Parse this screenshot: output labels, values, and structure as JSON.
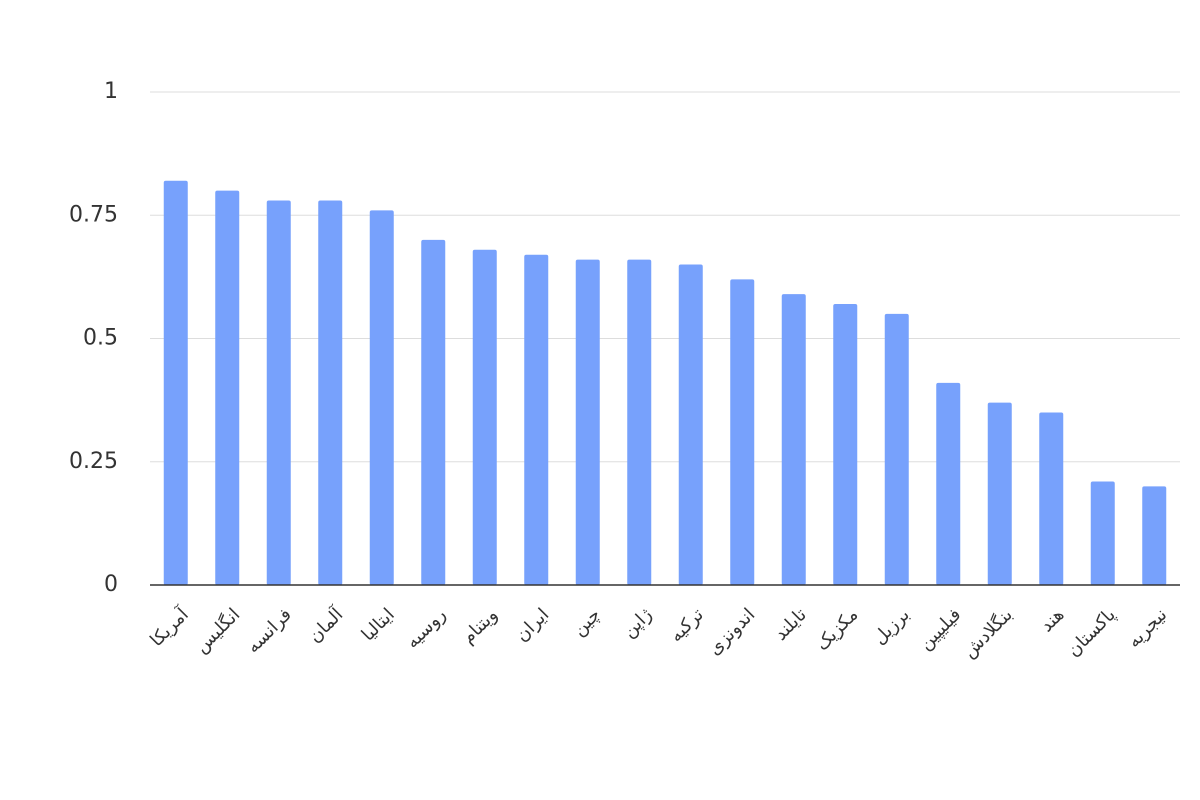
{
  "chart_data": {
    "type": "bar",
    "categories": [
      "آمریکا",
      "انگلیس",
      "فرانسه",
      "آلمان",
      "ایتالیا",
      "روسیه",
      "ویتنام",
      "ایران",
      "چین",
      "ژاپن",
      "ترکیه",
      "اندونزی",
      "تایلند",
      "مکزیک",
      "برزیل",
      "فیلیپین",
      "بنگلادش",
      "هند",
      "پاکستان",
      "نیجریه"
    ],
    "values": [
      0.82,
      0.8,
      0.78,
      0.78,
      0.76,
      0.7,
      0.68,
      0.67,
      0.66,
      0.66,
      0.65,
      0.62,
      0.59,
      0.57,
      0.55,
      0.41,
      0.37,
      0.35,
      0.21,
      0.2
    ],
    "color": "#77a1fc",
    "ylim": [
      0,
      1
    ],
    "yticks": [
      0,
      0.25,
      0.5,
      0.75,
      1
    ],
    "grid": true
  }
}
